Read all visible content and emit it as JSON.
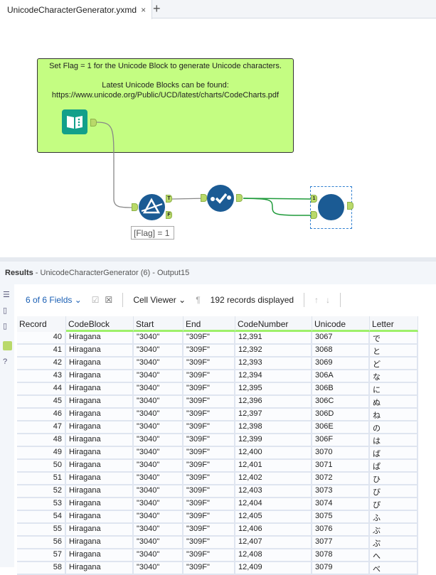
{
  "tab": {
    "title": "UnicodeCharacterGenerator.yxmd",
    "close": "×",
    "add": "+"
  },
  "canvas": {
    "comment": {
      "line1": "Set Flag = 1 for the Unicode Block to generate Unicode characters.",
      "line2": "Latest Unicode Blocks can be found:",
      "line3": "https://www.unicode.org/Public/UCD/latest/charts/CodeCharts.pdf"
    },
    "filter_true": "T",
    "filter_false": "F",
    "union_input": "1",
    "filter_expr": "[Flag] = 1"
  },
  "results": {
    "label": "Results",
    "subtitle": " - UnicodeCharacterGenerator (6) - Output15"
  },
  "toolbar": {
    "fields": "6 of 6 Fields",
    "viewer": "Cell Viewer",
    "records": "192 records displayed"
  },
  "table": {
    "columns": [
      "Record",
      "CodeBlock",
      "Start",
      "End",
      "CodeNumber",
      "Unicode",
      "Letter"
    ],
    "rows": [
      [
        "40",
        "Hiragana",
        "\"3040\"",
        "\"309F\"",
        "12,391",
        "3067",
        "で"
      ],
      [
        "41",
        "Hiragana",
        "\"3040\"",
        "\"309F\"",
        "12,392",
        "3068",
        "と"
      ],
      [
        "42",
        "Hiragana",
        "\"3040\"",
        "\"309F\"",
        "12,393",
        "3069",
        "ど"
      ],
      [
        "43",
        "Hiragana",
        "\"3040\"",
        "\"309F\"",
        "12,394",
        "306A",
        "な"
      ],
      [
        "44",
        "Hiragana",
        "\"3040\"",
        "\"309F\"",
        "12,395",
        "306B",
        "に"
      ],
      [
        "45",
        "Hiragana",
        "\"3040\"",
        "\"309F\"",
        "12,396",
        "306C",
        "ぬ"
      ],
      [
        "46",
        "Hiragana",
        "\"3040\"",
        "\"309F\"",
        "12,397",
        "306D",
        "ね"
      ],
      [
        "47",
        "Hiragana",
        "\"3040\"",
        "\"309F\"",
        "12,398",
        "306E",
        "の"
      ],
      [
        "48",
        "Hiragana",
        "\"3040\"",
        "\"309F\"",
        "12,399",
        "306F",
        "は"
      ],
      [
        "49",
        "Hiragana",
        "\"3040\"",
        "\"309F\"",
        "12,400",
        "3070",
        "ば"
      ],
      [
        "50",
        "Hiragana",
        "\"3040\"",
        "\"309F\"",
        "12,401",
        "3071",
        "ぱ"
      ],
      [
        "51",
        "Hiragana",
        "\"3040\"",
        "\"309F\"",
        "12,402",
        "3072",
        "ひ"
      ],
      [
        "52",
        "Hiragana",
        "\"3040\"",
        "\"309F\"",
        "12,403",
        "3073",
        "び"
      ],
      [
        "53",
        "Hiragana",
        "\"3040\"",
        "\"309F\"",
        "12,404",
        "3074",
        "ぴ"
      ],
      [
        "54",
        "Hiragana",
        "\"3040\"",
        "\"309F\"",
        "12,405",
        "3075",
        "ふ"
      ],
      [
        "55",
        "Hiragana",
        "\"3040\"",
        "\"309F\"",
        "12,406",
        "3076",
        "ぶ"
      ],
      [
        "56",
        "Hiragana",
        "\"3040\"",
        "\"309F\"",
        "12,407",
        "3077",
        "ぷ"
      ],
      [
        "57",
        "Hiragana",
        "\"3040\"",
        "\"309F\"",
        "12,408",
        "3078",
        "へ"
      ],
      [
        "58",
        "Hiragana",
        "\"3040\"",
        "\"309F\"",
        "12,409",
        "3079",
        "べ"
      ]
    ]
  }
}
